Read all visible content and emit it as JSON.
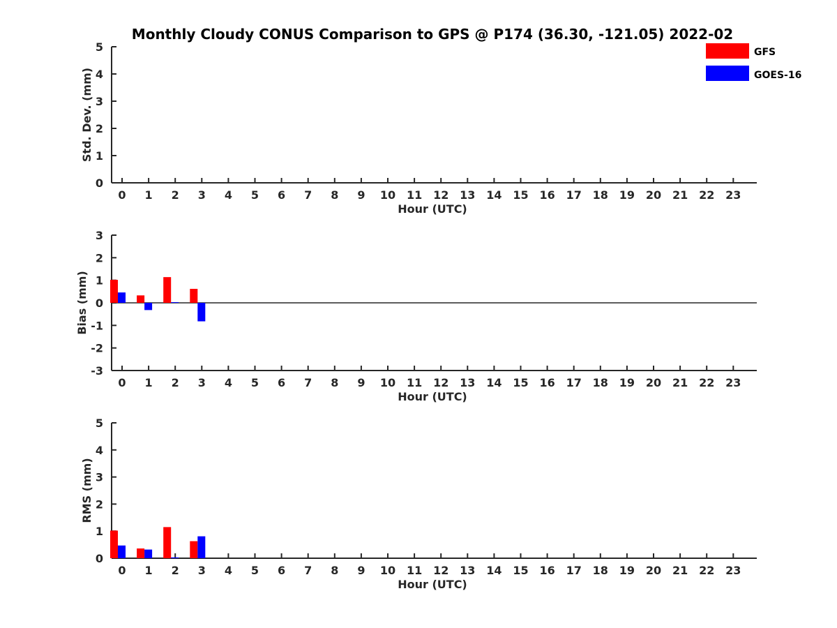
{
  "chart_data": {
    "type": "bar",
    "title": "Monthly Cloudy CONUS Comparison to GPS @ P174 (36.30, -121.05) 2022-02",
    "legend": {
      "placement": "top-right",
      "entries": [
        {
          "name": "GFS",
          "color": "#ff0000"
        },
        {
          "name": "GOES-16",
          "color": "#0000ff"
        }
      ]
    },
    "categories": [
      "0",
      "1",
      "2",
      "3",
      "4",
      "5",
      "6",
      "7",
      "8",
      "9",
      "10",
      "11",
      "12",
      "13",
      "14",
      "15",
      "16",
      "17",
      "18",
      "19",
      "20",
      "21",
      "22",
      "23"
    ],
    "panels": [
      {
        "id": "std",
        "ylabel": "Std. Dev. (mm)",
        "xlabel": "Hour (UTC)",
        "ylim": [
          0,
          5
        ],
        "yticks": [
          "0",
          "1",
          "2",
          "3",
          "4",
          "5"
        ],
        "zero_line": false,
        "series": [
          {
            "name": "GFS",
            "values": [
              null,
              null,
              null,
              null,
              null,
              null,
              null,
              null,
              null,
              null,
              null,
              null,
              null,
              null,
              null,
              null,
              null,
              null,
              null,
              null,
              null,
              null,
              null,
              null
            ]
          },
          {
            "name": "GOES-16",
            "values": [
              null,
              null,
              null,
              null,
              null,
              null,
              null,
              null,
              null,
              null,
              null,
              null,
              null,
              null,
              null,
              null,
              null,
              null,
              null,
              null,
              null,
              null,
              null,
              null
            ]
          }
        ]
      },
      {
        "id": "bias",
        "ylabel": "Bias (mm)",
        "xlabel": "Hour (UTC)",
        "ylim": [
          -3,
          3
        ],
        "yticks": [
          "-3",
          "-2",
          "-1",
          "0",
          "1",
          "2",
          "3"
        ],
        "zero_line": true,
        "series": [
          {
            "name": "GFS",
            "values": [
              1.02,
              0.33,
              1.14,
              0.62,
              null,
              null,
              null,
              null,
              null,
              null,
              null,
              null,
              null,
              null,
              null,
              null,
              null,
              null,
              null,
              null,
              null,
              null,
              null,
              null
            ]
          },
          {
            "name": "GOES-16",
            "values": [
              0.46,
              -0.32,
              0.03,
              -0.82,
              null,
              null,
              null,
              null,
              null,
              null,
              null,
              null,
              null,
              null,
              null,
              null,
              null,
              null,
              null,
              null,
              null,
              null,
              null,
              null
            ]
          }
        ]
      },
      {
        "id": "rms",
        "ylabel": "RMS (mm)",
        "xlabel": "Hour (UTC)",
        "ylim": [
          0,
          5
        ],
        "yticks": [
          "0",
          "1",
          "2",
          "3",
          "4",
          "5"
        ],
        "zero_line": false,
        "series": [
          {
            "name": "GFS",
            "values": [
              1.02,
              0.36,
              1.15,
              0.63,
              null,
              null,
              null,
              null,
              null,
              null,
              null,
              null,
              null,
              null,
              null,
              null,
              null,
              null,
              null,
              null,
              null,
              null,
              null,
              null
            ]
          },
          {
            "name": "GOES-16",
            "values": [
              0.47,
              0.32,
              0.03,
              0.81,
              null,
              null,
              null,
              null,
              null,
              null,
              null,
              null,
              null,
              null,
              null,
              null,
              null,
              null,
              null,
              null,
              null,
              null,
              null,
              null
            ]
          }
        ]
      }
    ]
  }
}
